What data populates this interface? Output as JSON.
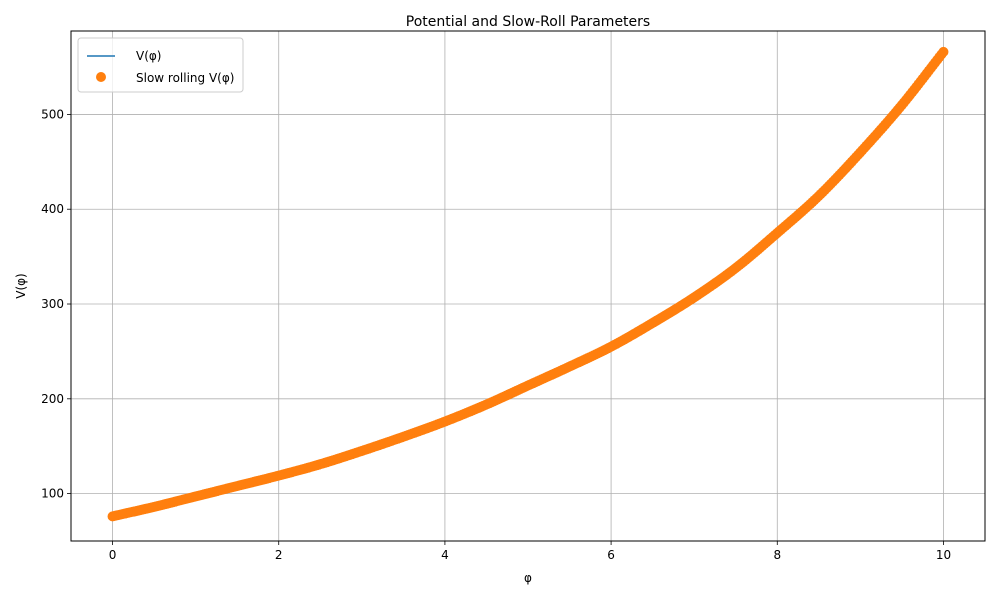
{
  "chart_data": {
    "type": "line",
    "title": "Potential and Slow-Roll Parameters",
    "xlabel": "φ",
    "ylabel": "V(φ)",
    "xlim": [
      -0.5,
      10.5
    ],
    "ylim": [
      50,
      588
    ],
    "xticks": [
      0,
      2,
      4,
      6,
      8,
      10
    ],
    "yticks": [
      100,
      200,
      300,
      400,
      500
    ],
    "xtick_labels": [
      "0",
      "2",
      "4",
      "6",
      "8",
      "10"
    ],
    "ytick_labels": [
      "100",
      "200",
      "300",
      "400",
      "500"
    ],
    "grid": true,
    "legend_position": "top-left",
    "x": [
      0,
      0.5,
      1,
      1.5,
      2,
      2.5,
      3,
      3.5,
      4,
      4.5,
      5,
      5.5,
      6,
      6.5,
      7,
      7.5,
      8,
      8.5,
      9,
      9.5,
      10
    ],
    "series": [
      {
        "name": "V(φ)",
        "style": "line",
        "color": "#1f77b4",
        "values": [
          76,
          86,
          97,
          108,
          119,
          131,
          145,
          160,
          176,
          194,
          214,
          234,
          255,
          280,
          307,
          338,
          375,
          414,
          460,
          510,
          566
        ]
      },
      {
        "name": "Slow rolling V(φ)",
        "style": "markers",
        "color": "#ff7f0e",
        "values": [
          76,
          86,
          97,
          108,
          119,
          131,
          145,
          160,
          176,
          194,
          214,
          234,
          255,
          280,
          307,
          338,
          375,
          414,
          460,
          510,
          566
        ]
      }
    ]
  }
}
